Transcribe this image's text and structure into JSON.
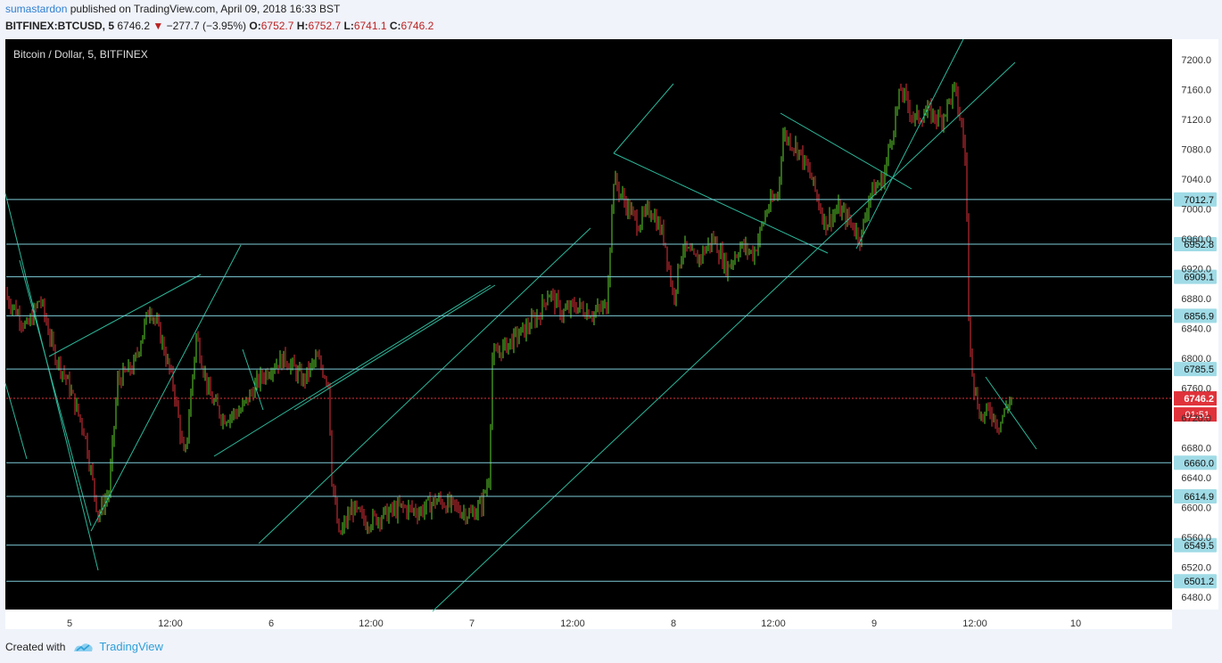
{
  "header": {
    "author": "sumastardon",
    "published_text": "published on TradingView.com, April 09, 2018 16:33 BST",
    "symbol": "BITFINEX:BTCUSD, 5",
    "last": "6746.2",
    "change": "−277.7 (−3.95%)",
    "open_label": "O:",
    "open": "6752.7",
    "high_label": "H:",
    "high": "6752.7",
    "low_label": "L:",
    "low": "6741.1",
    "close_label": "C:",
    "close": "6746.2"
  },
  "footer": {
    "created_with": "Created with",
    "brand": "TradingView"
  },
  "colors": {
    "up": "#5fd22e",
    "down": "#e0323a",
    "level": "#7ecbd8",
    "trend": "#2bb89a",
    "current": "#e0323a",
    "bg": "#000000",
    "axis_bg": "#ffffff"
  },
  "chart_data": {
    "type": "candlestick",
    "title": "Bitcoin / Dollar, 5, BITFINEX",
    "ylim": [
      6460,
      7220
    ],
    "y_ticks": [
      6480,
      6520,
      6560,
      6600,
      6640,
      6680,
      6720,
      6760,
      6800,
      6840,
      6880,
      6920,
      6960,
      7000,
      7040,
      7080,
      7120,
      7160,
      7200
    ],
    "x_ticks": [
      "5",
      "12:00",
      "6",
      "12:00",
      "7",
      "12:00",
      "8",
      "12:00",
      "9",
      "12:00",
      "10"
    ],
    "levels": [
      7012.7,
      6952.8,
      6909.1,
      6856.9,
      6785.5,
      6660.0,
      6614.9,
      6549.5,
      6501.2
    ],
    "current_price": "6746.2",
    "countdown": "01:51",
    "price_path": [
      [
        0,
        6890
      ],
      [
        15,
        6870
      ],
      [
        30,
        6840
      ],
      [
        45,
        6880
      ],
      [
        60,
        6810
      ],
      [
        75,
        6770
      ],
      [
        95,
        6700
      ],
      [
        110,
        6590
      ],
      [
        122,
        6620
      ],
      [
        132,
        6770
      ],
      [
        150,
        6790
      ],
      [
        168,
        6870
      ],
      [
        180,
        6830
      ],
      [
        195,
        6760
      ],
      [
        207,
        6660
      ],
      [
        220,
        6830
      ],
      [
        235,
        6750
      ],
      [
        250,
        6720
      ],
      [
        270,
        6730
      ],
      [
        290,
        6770
      ],
      [
        305,
        6790
      ],
      [
        320,
        6800
      ],
      [
        340,
        6770
      ],
      [
        355,
        6800
      ],
      [
        368,
        6770
      ],
      [
        372,
        6640
      ],
      [
        380,
        6560
      ],
      [
        395,
        6600
      ],
      [
        410,
        6580
      ],
      [
        430,
        6590
      ],
      [
        450,
        6600
      ],
      [
        470,
        6595
      ],
      [
        490,
        6610
      ],
      [
        510,
        6600
      ],
      [
        528,
        6590
      ],
      [
        540,
        6605
      ],
      [
        548,
        6640
      ],
      [
        552,
        6800
      ],
      [
        570,
        6820
      ],
      [
        590,
        6840
      ],
      [
        605,
        6860
      ],
      [
        615,
        6890
      ],
      [
        630,
        6860
      ],
      [
        645,
        6870
      ],
      [
        665,
        6860
      ],
      [
        680,
        6870
      ],
      [
        688,
        7040
      ],
      [
        700,
        7010
      ],
      [
        715,
        6980
      ],
      [
        730,
        7000
      ],
      [
        745,
        6960
      ],
      [
        755,
        6880
      ],
      [
        765,
        6950
      ],
      [
        780,
        6930
      ],
      [
        800,
        6960
      ],
      [
        815,
        6920
      ],
      [
        830,
        6950
      ],
      [
        845,
        6940
      ],
      [
        860,
        7000
      ],
      [
        872,
        7020
      ],
      [
        878,
        7100
      ],
      [
        895,
        7080
      ],
      [
        910,
        7040
      ],
      [
        925,
        6980
      ],
      [
        940,
        7000
      ],
      [
        955,
        6980
      ],
      [
        965,
        6960
      ],
      [
        975,
        7020
      ],
      [
        990,
        7040
      ],
      [
        1000,
        7100
      ],
      [
        1010,
        7160
      ],
      [
        1025,
        7120
      ],
      [
        1040,
        7130
      ],
      [
        1055,
        7120
      ],
      [
        1070,
        7160
      ],
      [
        1078,
        7110
      ],
      [
        1083,
        7060
      ],
      [
        1086,
        6850
      ],
      [
        1092,
        6760
      ],
      [
        1100,
        6720
      ],
      [
        1110,
        6730
      ],
      [
        1120,
        6710
      ],
      [
        1130,
        6740
      ],
      [
        1134,
        6746
      ]
    ]
  }
}
